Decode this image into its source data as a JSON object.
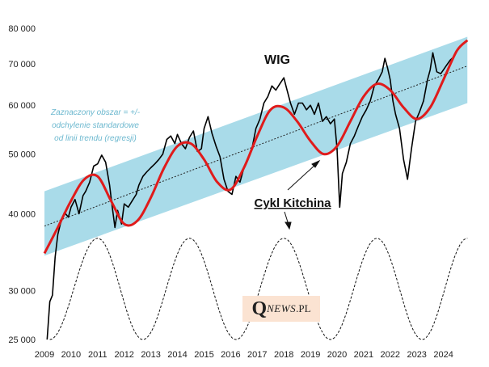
{
  "chart_data": {
    "type": "line",
    "title": "WIG",
    "annotation_cycle": "Cykl Kitchina",
    "band_note": [
      "Zaznaczony obszar = +/-",
      "odchylenie standardowe",
      "od linii trendu (regresji)"
    ],
    "y_scale": "log",
    "ylim": [
      25000,
      80000
    ],
    "xlim": [
      2009.0,
      2025.5
    ],
    "y_ticks": [
      25000,
      30000,
      40000,
      50000,
      60000,
      70000,
      80000
    ],
    "y_tick_labels": [
      "25 000",
      "30 000",
      "40 000",
      "50 000",
      "60 000",
      "70 000",
      "80 000"
    ],
    "x_ticks": [
      2009,
      2010,
      2011,
      2012,
      2013,
      2014,
      2015,
      2016,
      2017,
      2018,
      2019,
      2020,
      2021,
      2022,
      2023,
      2024
    ],
    "x_tick_labels": [
      "2009",
      "2010",
      "2011",
      "2012",
      "2013",
      "2014",
      "2015",
      "2016",
      "2017",
      "2018",
      "2019",
      "2020",
      "2021",
      "2022",
      "2023",
      "2024"
    ],
    "trend": {
      "x": [
        2009.0,
        2024.9
      ],
      "y": [
        38200,
        69500
      ]
    },
    "band": {
      "upper": [
        43500,
        77500
      ],
      "lower": [
        34200,
        60500
      ]
    },
    "series": [
      {
        "name": "WIG",
        "x": [
          2009.1,
          2009.2,
          2009.3,
          2009.4,
          2009.5,
          2009.6,
          2009.75,
          2009.9,
          2010.0,
          2010.15,
          2010.3,
          2010.45,
          2010.55,
          2010.7,
          2010.85,
          2011.0,
          2011.15,
          2011.3,
          2011.45,
          2011.55,
          2011.65,
          2011.75,
          2011.9,
          2012.0,
          2012.15,
          2012.3,
          2012.45,
          2012.55,
          2012.7,
          2012.85,
          2013.0,
          2013.15,
          2013.3,
          2013.45,
          2013.6,
          2013.75,
          2013.9,
          2014.0,
          2014.15,
          2014.3,
          2014.45,
          2014.6,
          2014.75,
          2014.9,
          2015.0,
          2015.15,
          2015.3,
          2015.45,
          2015.6,
          2015.75,
          2015.9,
          2016.05,
          2016.2,
          2016.35,
          2016.5,
          2016.65,
          2016.8,
          2016.95,
          2017.1,
          2017.25,
          2017.4,
          2017.55,
          2017.7,
          2017.85,
          2018.0,
          2018.1,
          2018.25,
          2018.4,
          2018.55,
          2018.7,
          2018.85,
          2019.0,
          2019.15,
          2019.3,
          2019.45,
          2019.6,
          2019.75,
          2019.9,
          2020.0,
          2020.1,
          2020.2,
          2020.35,
          2020.5,
          2020.65,
          2020.8,
          2020.95,
          2021.1,
          2021.25,
          2021.4,
          2021.55,
          2021.7,
          2021.8,
          2021.9,
          2022.0,
          2022.1,
          2022.2,
          2022.35,
          2022.5,
          2022.65,
          2022.8,
          2022.95,
          2023.1,
          2023.25,
          2023.4,
          2023.5,
          2023.6,
          2023.75,
          2023.9,
          2024.0,
          2024.1,
          2024.25,
          2024.4
        ],
        "y": [
          25000,
          28800,
          29500,
          34000,
          37000,
          38500,
          40200,
          39500,
          41000,
          42200,
          40000,
          42800,
          43500,
          45000,
          47800,
          48200,
          49800,
          48500,
          44500,
          41000,
          38000,
          40500,
          38500,
          41500,
          41000,
          42000,
          43000,
          44500,
          46000,
          46800,
          47500,
          48200,
          49000,
          50000,
          52800,
          53500,
          52000,
          53800,
          52000,
          51000,
          53200,
          54500,
          50500,
          51000,
          55000,
          57500,
          54000,
          51500,
          49500,
          45500,
          43500,
          43000,
          46000,
          45000,
          47500,
          49000,
          51000,
          55000,
          57000,
          60500,
          62000,
          64500,
          63500,
          65000,
          66500,
          64000,
          60500,
          58000,
          60500,
          60500,
          59000,
          60000,
          58000,
          60500,
          56500,
          57500,
          56000,
          57000,
          51000,
          41000,
          46500,
          48500,
          52000,
          53500,
          55500,
          57500,
          59000,
          61000,
          64500,
          66000,
          68000,
          71500,
          69000,
          66000,
          61000,
          58000,
          55000,
          49000,
          45500,
          51000,
          56500,
          58500,
          61000,
          66000,
          68500,
          73000,
          68000,
          67500,
          68500,
          69500,
          71000,
          72000
        ]
      },
      {
        "name": "Cykl Kitchina",
        "x": [
          2009.0,
          2009.5,
          2010.0,
          2010.5,
          2011.0,
          2011.5,
          2012.0,
          2012.5,
          2013.0,
          2013.5,
          2014.0,
          2014.5,
          2015.0,
          2015.5,
          2016.0,
          2016.5,
          2017.0,
          2017.5,
          2018.0,
          2018.5,
          2019.0,
          2019.5,
          2020.0,
          2020.5,
          2021.0,
          2021.5,
          2022.0,
          2022.5,
          2023.0,
          2023.5,
          2024.0,
          2024.5,
          2024.9
        ],
        "y": [
          34500,
          38000,
          42000,
          45500,
          46000,
          42000,
          38500,
          39000,
          42500,
          47500,
          51500,
          52000,
          49000,
          45000,
          43800,
          47500,
          53500,
          59000,
          59500,
          56500,
          52500,
          50000,
          51500,
          56500,
          62000,
          65000,
          63500,
          59500,
          57000,
          59500,
          66000,
          73500,
          76500
        ]
      },
      {
        "name": "Dashed cycle",
        "x": [
          2009.2,
          2011.0,
          2012.7,
          2014.45,
          2016.2,
          2018.0,
          2019.75,
          2021.5,
          2023.2,
          2024.9
        ],
        "y": [
          25000,
          36500,
          25000,
          36500,
          25000,
          36500,
          25000,
          36500,
          25000,
          36500
        ]
      }
    ]
  },
  "logo": {
    "q": "Q",
    "rest": "NEWS",
    "suffix": ".PL"
  }
}
